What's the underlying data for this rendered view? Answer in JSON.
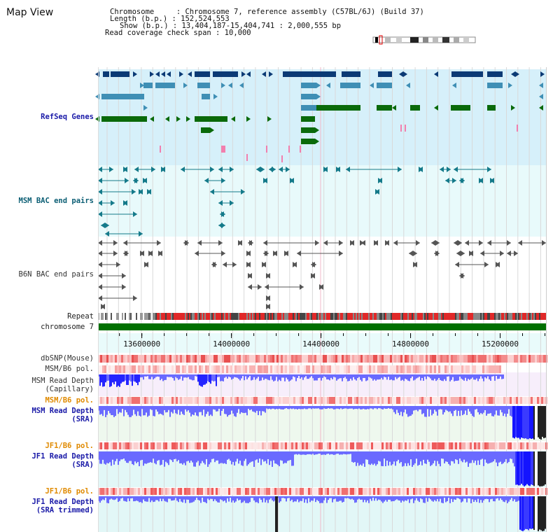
{
  "panel_title": "Map View",
  "header": {
    "chromosome_line": "Chromosome     : Chromosome 7, reference assembly (C57BL/6J) (Build 37)",
    "length_line": "Length (b.p.) : 152,524,553",
    "show_line": "Show (b.p.) : 13,404,187-15,404,741 : 2,000,555 bp",
    "span_line": "Read coverage check span : 10,000"
  },
  "region": {
    "start": 13404187,
    "end": 15404741,
    "chromosome_length": 152524553
  },
  "axis": {
    "ticks": [
      "13600000",
      "14000000",
      "14400000",
      "14800000",
      "15200000"
    ],
    "tick_values": [
      13600000,
      14000000,
      14400000,
      14800000,
      15200000
    ]
  },
  "tracks": {
    "refseq": "RefSeq Genes",
    "msm_bac": "MSM BAC end pairs",
    "b6n_bac": "B6N BAC end pairs",
    "repeat": "Repeat",
    "chromosome": "chromosome 7",
    "dbsnp": "dbSNP(Mouse)",
    "msm_b6_pol_1": "MSM/B6 pol.",
    "msm_depth_cap_1": "MSM Read Depth",
    "msm_depth_cap_2": "(Capillary)",
    "msm_b6_pol_2": "MSM/B6 pol.",
    "msm_depth_sra_1": "MSM Read Depth",
    "msm_depth_sra_2": "(SRA)",
    "jf1_b6_pol_1": "JF1/B6 pol.",
    "jf1_depth_sra_1": "JF1 Read Depth",
    "jf1_depth_sra_2": "(SRA)",
    "jf1_b6_pol_2": "JF1/B6 pol.",
    "jf1_depth_trim_1": "JF1 Read Depth",
    "jf1_depth_trim_2": "(SRA trimmed)"
  },
  "colors": {
    "gene_dark": "#0b3a75",
    "gene_mid": "#3f8fb5",
    "gene_green": "#0a6a0a",
    "refseq_bg": "#d6f0fa",
    "msm_bg": "#e8fafb",
    "depth_blue": "#6a6aff",
    "depth_bg_cap": "#f7eefb",
    "depth_bg_sra": "#eef8ee",
    "depth_bg_jf1": "#e2f7f7",
    "chromosome_green": "#007000",
    "snp_red": "#e04040"
  }
}
